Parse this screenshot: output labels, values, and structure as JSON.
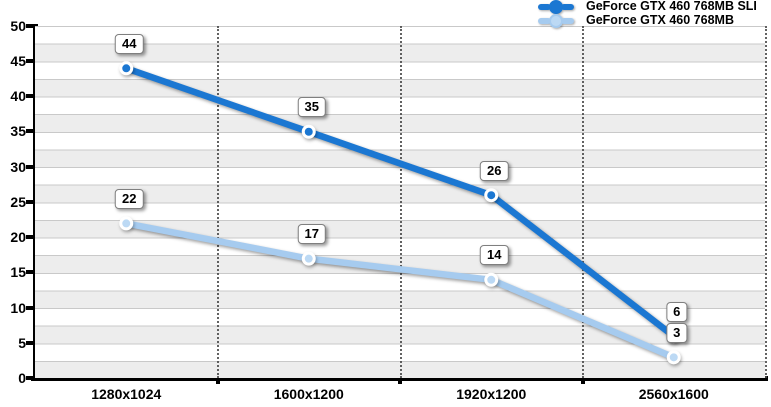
{
  "chart_data": {
    "type": "line",
    "title": "",
    "xlabel": "",
    "ylabel": "",
    "categories": [
      "1280x1024",
      "1600x1200",
      "1920x1200",
      "2560x1600"
    ],
    "series": [
      {
        "name": "GeForce GTX 460 768MB SLI",
        "color": "#1b77d2",
        "dot_fill": "#1b77d2",
        "values": [
          44,
          35,
          26,
          6
        ]
      },
      {
        "name": "GeForce GTX 460 768MB",
        "color": "#a6cbef",
        "dot_fill": "#bcd9f4",
        "values": [
          22,
          17,
          14,
          3
        ]
      }
    ],
    "point_labels": [
      [
        "44",
        "35",
        "26",
        "6"
      ],
      [
        "22",
        "17",
        "14",
        "3"
      ]
    ],
    "ylim": [
      0,
      50
    ],
    "ytick_step": 5,
    "ytick_labels": [
      "50",
      "45",
      "40",
      "35",
      "30",
      "25",
      "20",
      "15",
      "10",
      "5",
      "0"
    ],
    "band_step": 2.5,
    "grid": true,
    "legend_position": "top-right"
  },
  "colors": {
    "series_dark_blue": "#1b77d2",
    "series_light_blue": "#a6cbef",
    "band_gray": "#ededed",
    "gridline_gray": "#c9c9c9",
    "axis_black": "#000000",
    "label_box_border": "#7f7f7f"
  }
}
